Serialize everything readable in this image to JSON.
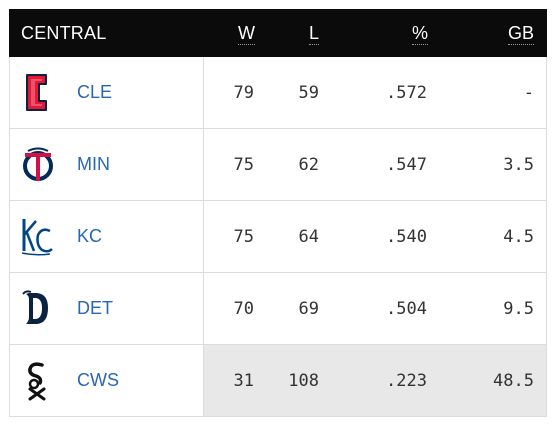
{
  "header": {
    "division": "CENTRAL",
    "w": "W",
    "l": "L",
    "pct": "%",
    "gb": "GB"
  },
  "rows": [
    {
      "team": "CLE",
      "logo": "guardians-c-logo",
      "w": "79",
      "l": "59",
      "pct": ".572",
      "gb": "-"
    },
    {
      "team": "MIN",
      "logo": "twins-tc-logo",
      "w": "75",
      "l": "62",
      "pct": ".547",
      "gb": "3.5"
    },
    {
      "team": "KC",
      "logo": "royals-kc-logo",
      "w": "75",
      "l": "64",
      "pct": ".540",
      "gb": "4.5"
    },
    {
      "team": "DET",
      "logo": "tigers-d-logo",
      "w": "70",
      "l": "69",
      "pct": ".504",
      "gb": "9.5"
    },
    {
      "team": "CWS",
      "logo": "white-sox-logo",
      "w": "31",
      "l": "108",
      "pct": ".223",
      "gb": "48.5"
    }
  ],
  "colors": {
    "header_bg": "#0b0b0b",
    "team_link": "#2a67b1",
    "highlight_bg": "#e8e8e8",
    "cle_red": "#e31937",
    "cle_navy": "#0c2340",
    "min_red": "#d31145",
    "min_navy": "#002b5c",
    "kc_blue": "#004687",
    "det_navy": "#0c2340"
  }
}
